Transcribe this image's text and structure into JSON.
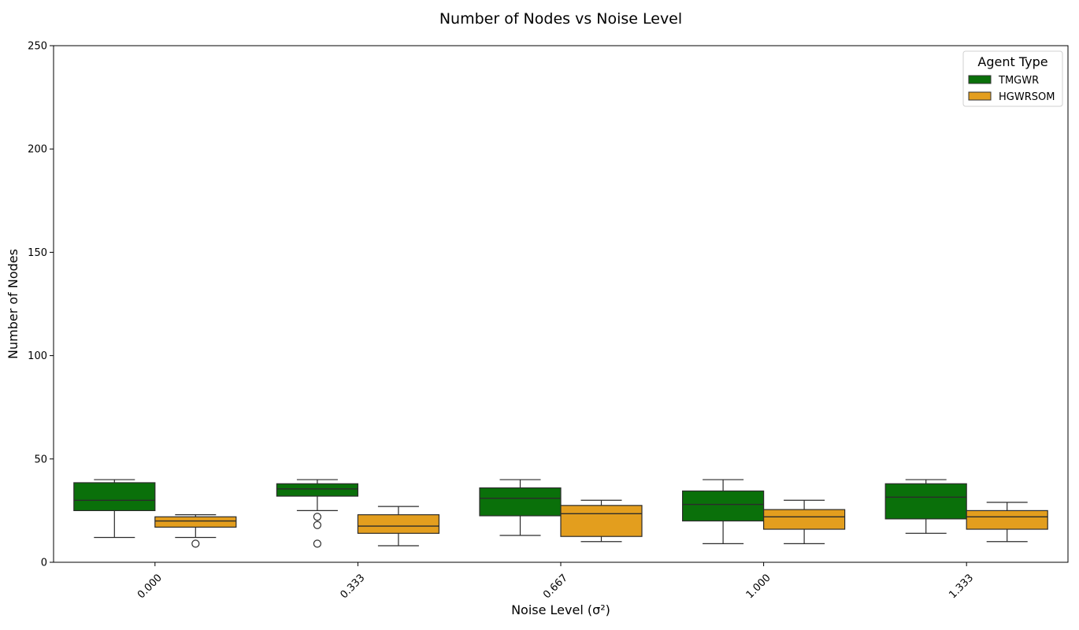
{
  "chart_data": {
    "type": "box",
    "title": "Number of Nodes vs Noise Level",
    "xlabel": "Noise Level (σ²)",
    "ylabel": "Number of Nodes",
    "categories": [
      "0.000",
      "0.333",
      "0.667",
      "1.000",
      "1.333"
    ],
    "ylim": [
      0,
      250
    ],
    "yticks": [
      0,
      50,
      100,
      150,
      200,
      250
    ],
    "grid": false,
    "legend": {
      "title": "Agent Type",
      "position": "top-right"
    },
    "series": [
      {
        "name": "TMGWR",
        "color": "#0a700a",
        "boxes": [
          {
            "whisker_low": 12,
            "q1": 25,
            "median": 30,
            "q3": 38.5,
            "whisker_high": 40,
            "outliers": []
          },
          {
            "whisker_low": 25,
            "q1": 32,
            "median": 35.5,
            "q3": 38,
            "whisker_high": 40,
            "outliers": [
              22,
              18,
              9
            ]
          },
          {
            "whisker_low": 13,
            "q1": 22.5,
            "median": 31,
            "q3": 36,
            "whisker_high": 40,
            "outliers": []
          },
          {
            "whisker_low": 9,
            "q1": 20,
            "median": 28,
            "q3": 34.5,
            "whisker_high": 40,
            "outliers": []
          },
          {
            "whisker_low": 14,
            "q1": 21,
            "median": 31.5,
            "q3": 38,
            "whisker_high": 40,
            "outliers": []
          }
        ]
      },
      {
        "name": "HGWRSOM",
        "color": "#e39e1e",
        "boxes": [
          {
            "whisker_low": 12,
            "q1": 17,
            "median": 20,
            "q3": 22,
            "whisker_high": 23,
            "outliers": [
              9
            ]
          },
          {
            "whisker_low": 8,
            "q1": 14,
            "median": 17.5,
            "q3": 23,
            "whisker_high": 27,
            "outliers": []
          },
          {
            "whisker_low": 10,
            "q1": 12.5,
            "median": 23.5,
            "q3": 27.5,
            "whisker_high": 30,
            "outliers": []
          },
          {
            "whisker_low": 9,
            "q1": 16,
            "median": 22,
            "q3": 25.5,
            "whisker_high": 30,
            "outliers": []
          },
          {
            "whisker_low": 10,
            "q1": 16,
            "median": 22,
            "q3": 25,
            "whisker_high": 29,
            "outliers": []
          }
        ]
      }
    ]
  }
}
